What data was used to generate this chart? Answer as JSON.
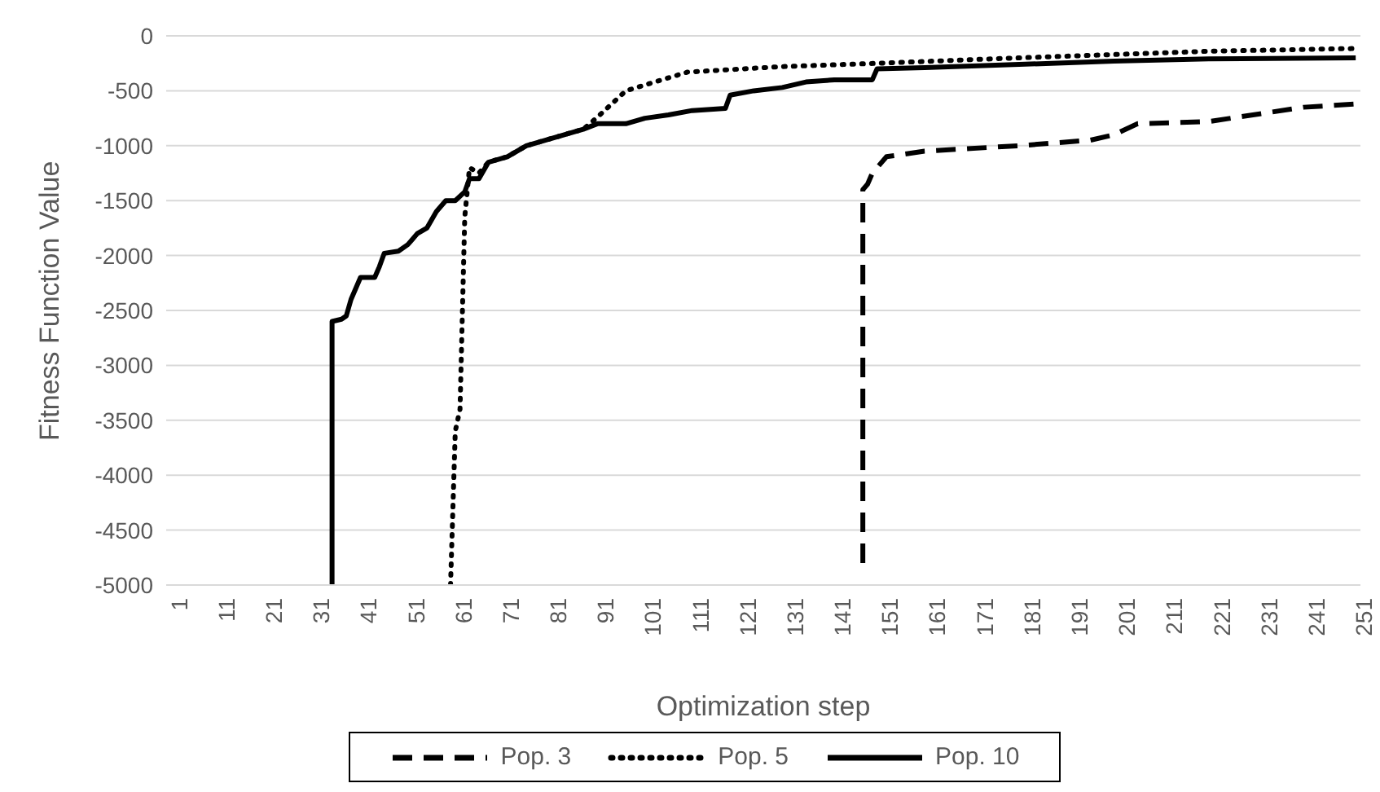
{
  "chart_data": {
    "type": "line",
    "xlabel": "Optimization step",
    "ylabel": "Fitness Function Value",
    "xlim": [
      0,
      252
    ],
    "xticks": [
      1,
      11,
      21,
      31,
      41,
      51,
      61,
      71,
      81,
      91,
      101,
      111,
      121,
      131,
      141,
      151,
      161,
      171,
      181,
      191,
      201,
      211,
      221,
      231,
      241,
      251
    ],
    "ylim": [
      -5000,
      0
    ],
    "yticks": [
      -5000,
      -4500,
      -4000,
      -3500,
      -3000,
      -2500,
      -2000,
      -1500,
      -1000,
      -500,
      0
    ],
    "grid": "y",
    "legend": "bottom",
    "marker": "none",
    "series": [
      {
        "name": "Pop. 3",
        "color": "#000000",
        "line_style": "dashed",
        "x": [
          147,
          147,
          148,
          149,
          152,
          160,
          180,
          195,
          200,
          205,
          220,
          240,
          251
        ],
        "values": [
          -4800,
          -1400,
          -1350,
          -1250,
          -1100,
          -1050,
          -1000,
          -950,
          -900,
          -800,
          -780,
          -650,
          -620
        ]
      },
      {
        "name": "Pop. 5",
        "color": "#000000",
        "line_style": "dotted",
        "x": [
          60,
          61,
          62,
          63,
          64,
          66,
          68,
          72,
          76,
          80,
          84,
          88,
          91,
          97,
          110,
          130,
          150,
          180,
          200,
          220,
          251
        ],
        "values": [
          -5000,
          -3600,
          -3400,
          -1650,
          -1200,
          -1250,
          -1150,
          -1100,
          -1000,
          -950,
          -900,
          -850,
          -740,
          -500,
          -330,
          -280,
          -250,
          -200,
          -170,
          -140,
          -115
        ]
      },
      {
        "name": "Pop. 10",
        "color": "#000000",
        "line_style": "solid",
        "x": [
          35,
          35,
          37,
          38,
          39,
          40,
          41,
          44,
          45,
          46,
          49,
          51,
          53,
          55,
          57,
          59,
          61,
          63,
          64,
          66,
          68,
          72,
          76,
          80,
          84,
          88,
          91,
          97,
          101,
          106,
          111,
          118,
          119,
          124,
          130,
          135,
          141,
          149,
          150,
          160,
          180,
          200,
          220,
          251
        ],
        "values": [
          -5000,
          -2600,
          -2580,
          -2550,
          -2400,
          -2300,
          -2200,
          -2200,
          -2100,
          -1980,
          -1960,
          -1900,
          -1800,
          -1750,
          -1600,
          -1500,
          -1500,
          -1420,
          -1300,
          -1300,
          -1150,
          -1100,
          -1000,
          -950,
          -900,
          -850,
          -800,
          -800,
          -750,
          -720,
          -680,
          -660,
          -540,
          -500,
          -470,
          -420,
          -400,
          -400,
          -300,
          -290,
          -260,
          -230,
          -210,
          -200
        ]
      }
    ]
  }
}
